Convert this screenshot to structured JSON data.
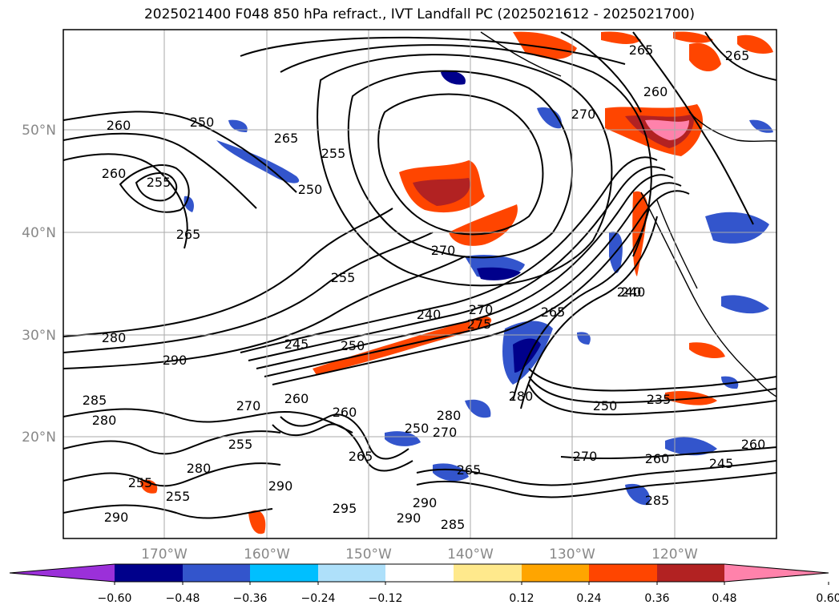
{
  "title": "2025021400 F048 850 hPa refract., IVT Landfall PC (2025021612 - 2025021700)",
  "lat_labels": [
    "50°N",
    "40°N",
    "30°N",
    "20°N"
  ],
  "lon_labels": [
    "170°W",
    "160°W",
    "150°W",
    "140°W",
    "130°W",
    "120°W"
  ],
  "colorbar": {
    "colors": [
      "#9b30d9",
      "#00008b",
      "#3355cc",
      "#00bfff",
      "#aee0fa",
      "#ffffff",
      "#ffe98c",
      "#ffa500",
      "#ff4500",
      "#b22222",
      "#ff82ab"
    ],
    "tick_labels": [
      "−0.60",
      "−0.48",
      "−0.36",
      "−0.24",
      "−0.12",
      "0.12",
      "0.24",
      "0.36",
      "0.48",
      "0.60"
    ]
  },
  "contour_labels": [
    "260",
    "250",
    "265",
    "255",
    "260",
    "255",
    "250",
    "265",
    "270",
    "255",
    "240",
    "245",
    "250",
    "280",
    "275",
    "270",
    "290",
    "285",
    "280",
    "260",
    "270",
    "260",
    "255",
    "280",
    "265",
    "250",
    "235",
    "280",
    "240",
    "270",
    "265",
    "260",
    "265",
    "290",
    "295",
    "290",
    "285",
    "265",
    "290",
    "285",
    "260",
    "270",
    "260",
    "245",
    "240",
    "255",
    "255",
    "290",
    "280",
    "270",
    "265",
    "250"
  ]
}
